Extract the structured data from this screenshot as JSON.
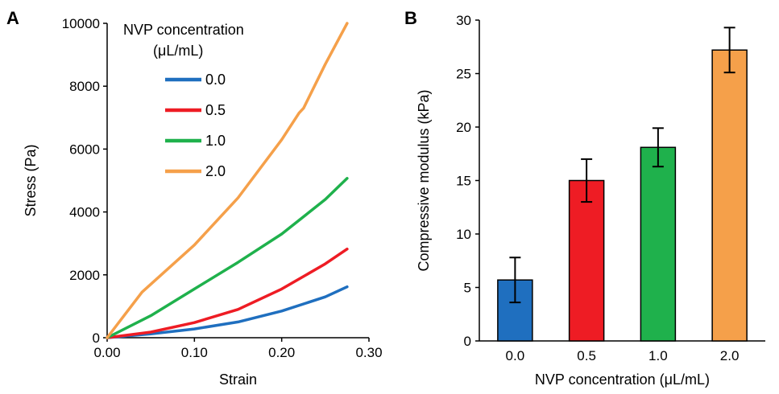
{
  "panel_a": {
    "label": "A",
    "legend_title_line1": "NVP concentration",
    "legend_title_line2": "(μL/mL)"
  },
  "panel_b": {
    "label": "B"
  },
  "chart_data": [
    {
      "type": "line",
      "xlabel": "Strain",
      "ylabel": "Stress (Pa)",
      "xlim": [
        0,
        0.3
      ],
      "ylim": [
        0,
        10000
      ],
      "xticks": [
        "0.00",
        "0.10",
        "0.20",
        "0.30"
      ],
      "yticks": [
        "0",
        "2000",
        "4000",
        "6000",
        "8000",
        "10000"
      ],
      "legend": "top-right",
      "grid": false,
      "series": [
        {
          "name": "0.0",
          "color": "#1f6fbf",
          "x": [
            0,
            0.05,
            0.1,
            0.15,
            0.2,
            0.25,
            0.275
          ],
          "y": [
            0,
            120,
            280,
            500,
            850,
            1300,
            1620
          ]
        },
        {
          "name": "0.5",
          "color": "#ee1c24",
          "x": [
            0,
            0.05,
            0.1,
            0.15,
            0.2,
            0.25,
            0.275
          ],
          "y": [
            0,
            180,
            480,
            900,
            1550,
            2350,
            2820
          ]
        },
        {
          "name": "1.0",
          "color": "#1fb14c",
          "x": [
            0,
            0.05,
            0.1,
            0.15,
            0.2,
            0.25,
            0.275
          ],
          "y": [
            0,
            700,
            1550,
            2400,
            3300,
            4400,
            5070
          ]
        },
        {
          "name": "2.0",
          "color": "#f5a04a",
          "x": [
            0,
            0.04,
            0.1,
            0.15,
            0.2,
            0.22,
            0.225,
            0.25,
            0.275
          ],
          "y": [
            0,
            1450,
            2950,
            4450,
            6300,
            7150,
            7300,
            8700,
            10000
          ]
        }
      ]
    },
    {
      "type": "bar",
      "xlabel": "NVP concentration (μL/mL)",
      "ylabel": "Compressive modulus (kPa)",
      "ylim": [
        0,
        30
      ],
      "yticks": [
        "0",
        "5",
        "10",
        "15",
        "20",
        "25",
        "30"
      ],
      "categories": [
        "0.0",
        "0.5",
        "1.0",
        "2.0"
      ],
      "values": [
        5.7,
        15.0,
        18.1,
        27.2
      ],
      "errors": [
        2.1,
        2.0,
        1.8,
        2.1
      ],
      "colors": [
        "#1f6fbf",
        "#ee1c24",
        "#1fb14c",
        "#f5a04a"
      ],
      "grid": false
    }
  ]
}
